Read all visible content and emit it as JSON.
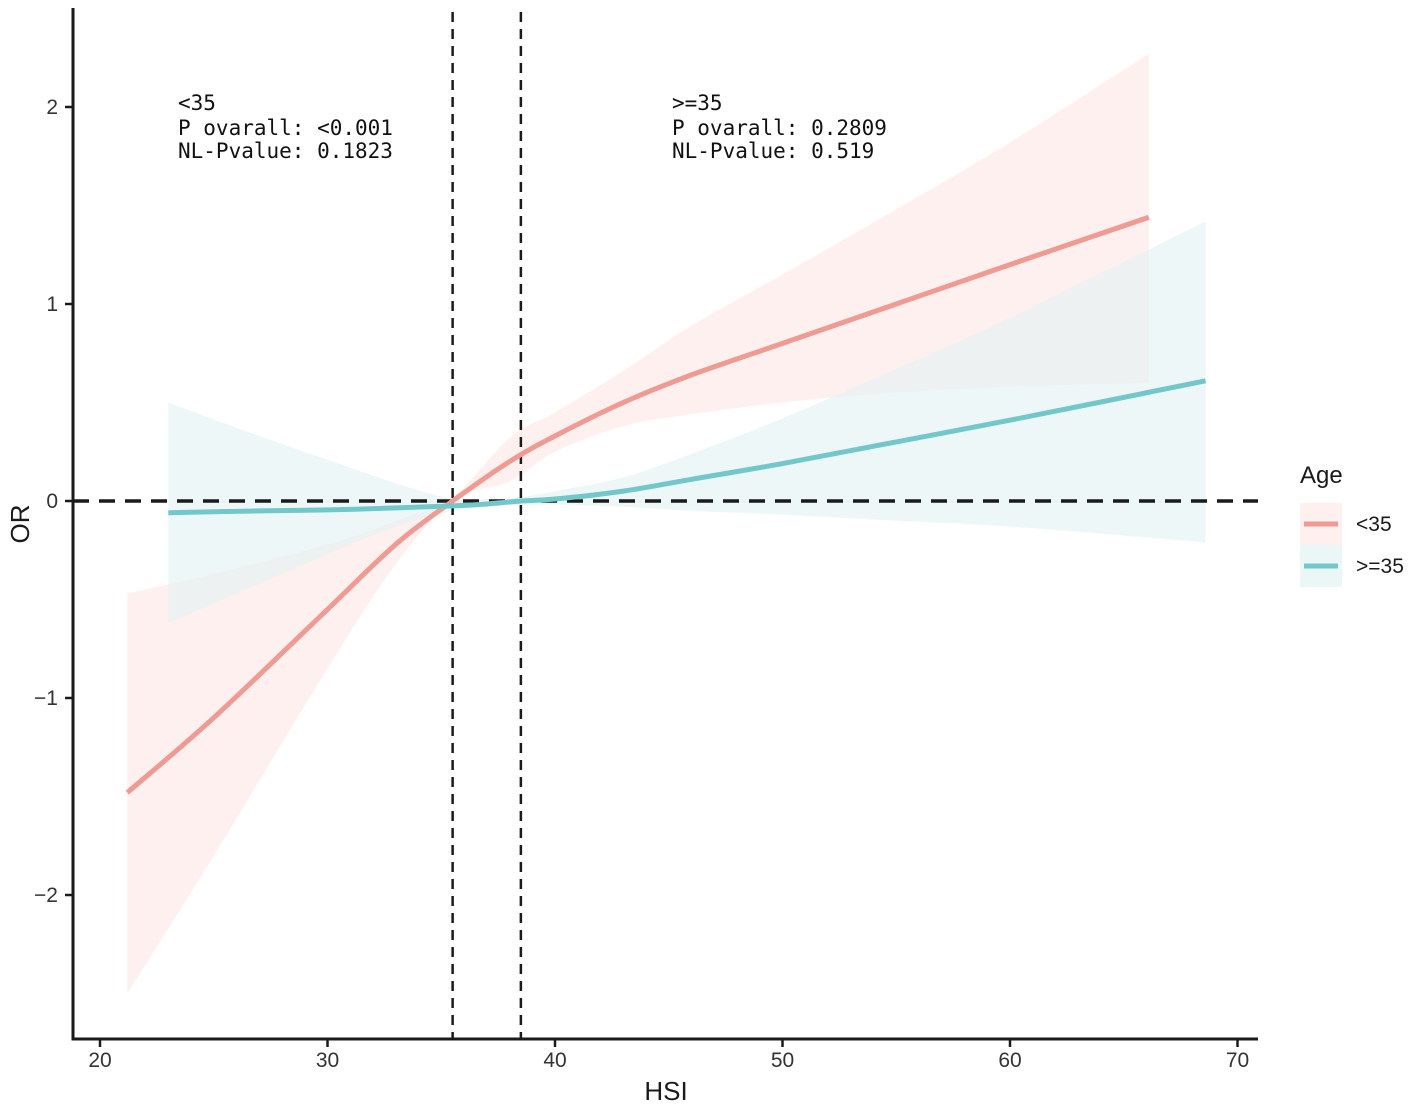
{
  "chart_data": {
    "type": "line",
    "xlabel": "HSI",
    "ylabel": "OR",
    "xlim": [
      19,
      71
    ],
    "ylim": [
      -2.7,
      2.5
    ],
    "x_ticks": [
      20,
      30,
      40,
      50,
      60,
      70
    ],
    "y_ticks": [
      -2,
      -1,
      0,
      1,
      2
    ],
    "x_tick_labels": [
      "20",
      "30",
      "40",
      "50",
      "60",
      "70"
    ],
    "y_tick_labels": [
      "−2",
      "−1",
      "0",
      "1",
      "2"
    ],
    "reference_lines": {
      "horizontal_y": 0,
      "vertical_x": [
        35.5,
        38.5
      ]
    },
    "grid": false,
    "legend": {
      "title": "Age",
      "position": "right",
      "entries": [
        "<35",
        ">=35"
      ]
    },
    "series": [
      {
        "name": "<35",
        "color": "#ef9a92",
        "band_color": "#fbe6e2",
        "x": [
          21.2,
          25,
          30,
          33,
          35.5,
          38,
          40,
          43,
          46,
          50,
          55,
          60,
          66.1
        ],
        "y": [
          -1.48,
          -1.1,
          -0.55,
          -0.22,
          0.0,
          0.2,
          0.33,
          0.5,
          0.64,
          0.8,
          1.0,
          1.2,
          1.44
        ],
        "lower": [
          -2.5,
          -1.8,
          -0.85,
          -0.32,
          0.0,
          0.1,
          0.25,
          0.38,
          0.44,
          0.5,
          0.55,
          0.58,
          0.6
        ],
        "upper": [
          -0.47,
          -0.37,
          -0.22,
          -0.1,
          0.02,
          0.32,
          0.45,
          0.66,
          0.89,
          1.15,
          1.48,
          1.82,
          2.27
        ]
      },
      {
        "name": ">=35",
        "color": "#72c7cb",
        "band_color": "#e3f2f4",
        "x": [
          23,
          27,
          30,
          33,
          35.5,
          37,
          38.5,
          40,
          43,
          46,
          50,
          55,
          60,
          68.6
        ],
        "y": [
          -0.06,
          -0.05,
          -0.045,
          -0.035,
          -0.025,
          -0.015,
          0.0,
          0.01,
          0.05,
          0.11,
          0.19,
          0.3,
          0.41,
          0.61
        ],
        "lower": [
          -0.62,
          -0.42,
          -0.27,
          -0.13,
          -0.05,
          -0.03,
          -0.02,
          -0.02,
          -0.03,
          -0.05,
          -0.07,
          -0.1,
          -0.13,
          -0.21
        ],
        "upper": [
          0.5,
          0.33,
          0.21,
          0.09,
          0.01,
          0.01,
          0.02,
          0.05,
          0.12,
          0.24,
          0.42,
          0.67,
          0.93,
          1.42
        ]
      }
    ],
    "annotations": [
      {
        "group": "<35",
        "lines": [
          "<35",
          "P ovarall: <0.001",
          "NL-Pvalue: 0.1823"
        ]
      },
      {
        "group": ">=35",
        "lines": [
          ">=35",
          "P ovarall: 0.2809",
          "NL-Pvalue: 0.519"
        ]
      }
    ]
  }
}
